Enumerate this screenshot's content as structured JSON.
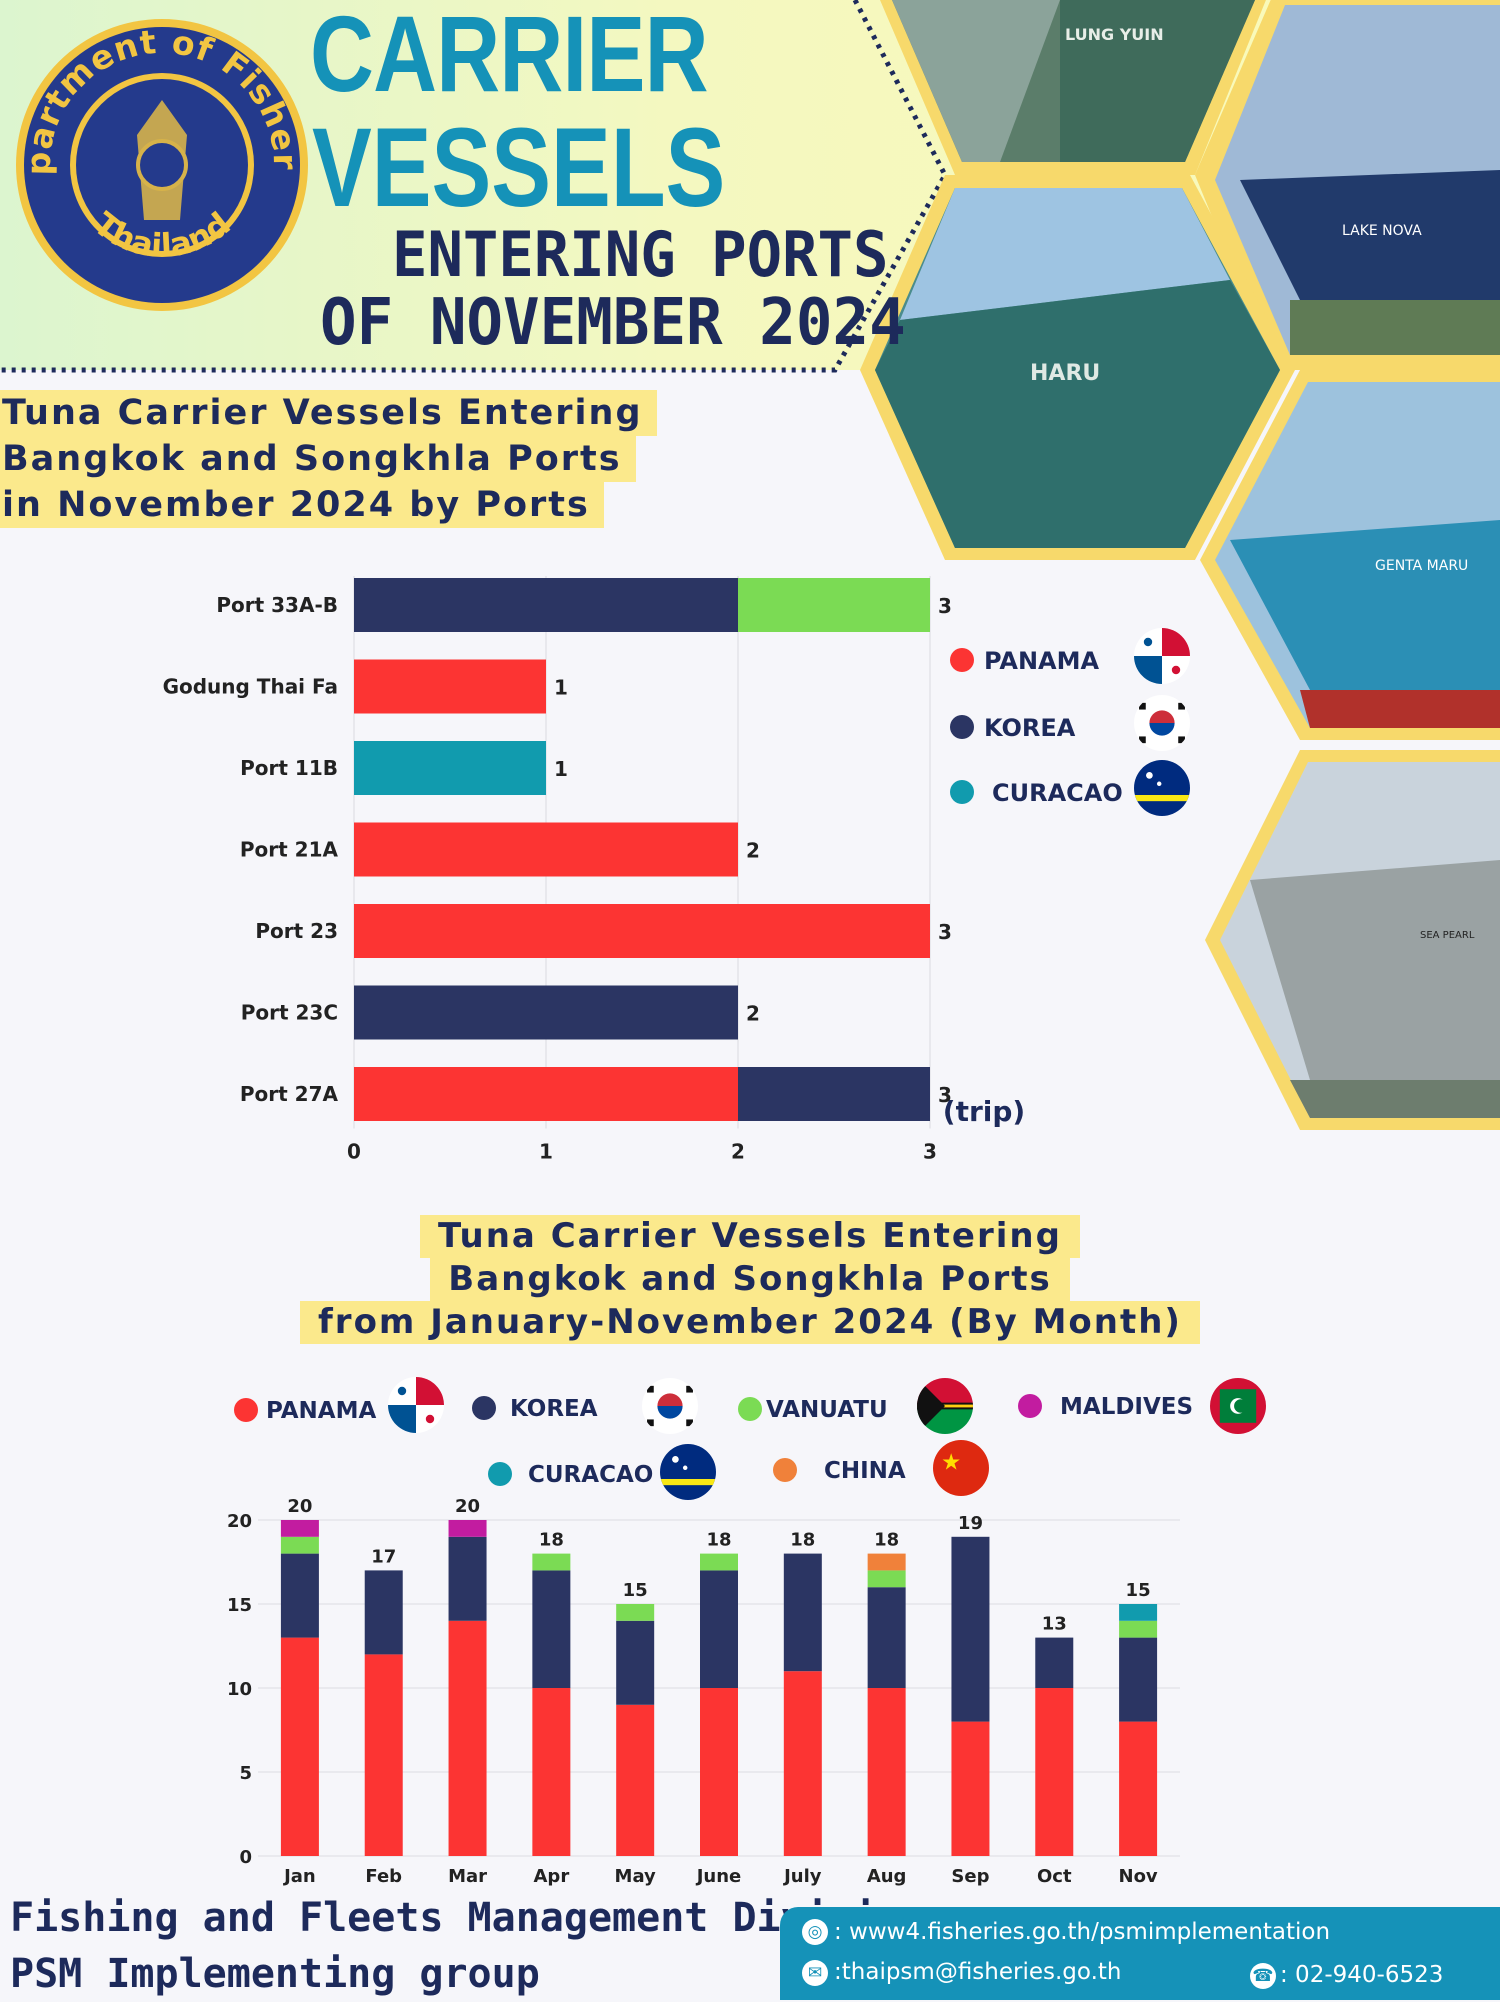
{
  "header": {
    "logo_text_top": "Department of Fisheries",
    "logo_text_bottom": "Thailand",
    "title_line1": "CARRIER",
    "title_line2": "VESSELS",
    "title_line3": "ENTERING PORTS",
    "title_line4": "OF NOVEMBER 2024"
  },
  "photos": {
    "names": [
      "LUNG YUIN",
      "LAKE NOVA",
      "HARU",
      "GENTA MARU",
      "SEA PEARL"
    ]
  },
  "section1": {
    "title_lines": [
      "Tuna Carrier Vessels Entering",
      "Bangkok and Songkhla Ports",
      "in November 2024 by Ports"
    ]
  },
  "section2": {
    "title_lines": [
      "Tuna Carrier Vessels Entering",
      "Bangkok and Songkhla Ports",
      "from January-November 2024 (By Month)"
    ]
  },
  "colors": {
    "PANAMA": "#fc3433",
    "KOREA": "#2b3563",
    "VANUATU": "#7bdb54",
    "MALDIVES": "#c21ca0",
    "CURACAO": "#119bae",
    "CHINA": "#f0813a",
    "highlight": "#fbe98c",
    "accent": "#1592b8",
    "navy": "#1d2a5b"
  },
  "chart_data": [
    {
      "type": "bar",
      "orientation": "horizontal",
      "stacked": true,
      "categories": [
        "Port 33A-B",
        "Godung Thai Fa",
        "Port 11B",
        "Port 21A",
        "Port 23",
        "Port 23C",
        "Port 27A"
      ],
      "segments": [
        [
          {
            "name": "KOREA",
            "value": 2
          },
          {
            "name": "VANUATU",
            "value": 1
          }
        ],
        [
          {
            "name": "PANAMA",
            "value": 1
          }
        ],
        [
          {
            "name": "CURACAO",
            "value": 1
          }
        ],
        [
          {
            "name": "PANAMA",
            "value": 2
          }
        ],
        [
          {
            "name": "PANAMA",
            "value": 3
          }
        ],
        [
          {
            "name": "KOREA",
            "value": 2
          }
        ],
        [
          {
            "name": "PANAMA",
            "value": 2
          },
          {
            "name": "KOREA",
            "value": 1
          }
        ]
      ],
      "totals": [
        3,
        1,
        1,
        2,
        3,
        2,
        3
      ],
      "x_ticks": [
        "0",
        "1",
        "2",
        "3"
      ],
      "xlim": [
        0,
        3
      ],
      "unit_label": "(trip)",
      "legend": [
        "PANAMA",
        "KOREA",
        "CURACAO"
      ],
      "grid": true
    },
    {
      "type": "bar",
      "stacked": true,
      "categories": [
        "Jan",
        "Feb",
        "Mar",
        "Apr",
        "May",
        "June",
        "July",
        "Aug",
        "Sep",
        "Oct",
        "Nov"
      ],
      "series": [
        {
          "name": "PANAMA",
          "values": [
            13,
            12,
            14,
            10,
            9,
            10,
            11,
            10,
            8,
            10,
            8
          ]
        },
        {
          "name": "KOREA",
          "values": [
            5,
            5,
            5,
            7,
            5,
            7,
            7,
            6,
            11,
            3,
            5
          ]
        },
        {
          "name": "VANUATU",
          "values": [
            1,
            0,
            0,
            1,
            1,
            1,
            0,
            1,
            0,
            0,
            1
          ]
        },
        {
          "name": "MALDIVES",
          "values": [
            1,
            0,
            1,
            0,
            0,
            0,
            0,
            0,
            0,
            0,
            0
          ]
        },
        {
          "name": "CURACAO",
          "values": [
            0,
            0,
            0,
            0,
            0,
            0,
            0,
            0,
            0,
            0,
            1
          ]
        },
        {
          "name": "CHINA",
          "values": [
            0,
            0,
            0,
            0,
            0,
            0,
            0,
            1,
            0,
            0,
            0
          ]
        }
      ],
      "totals": [
        20,
        17,
        20,
        18,
        15,
        18,
        18,
        18,
        19,
        13,
        15
      ],
      "y_ticks": [
        "0",
        "5",
        "10",
        "15",
        "20"
      ],
      "ylim": [
        0,
        20
      ],
      "legend": [
        "PANAMA",
        "KOREA",
        "VANUATU",
        "MALDIVES",
        "CURACAO",
        "CHINA"
      ],
      "grid": true
    }
  ],
  "footer": {
    "division": "Fishing and Fleets Management Division",
    "group": "PSM Implementing group",
    "website": ": www4.fisheries.go.th/psmimplementation",
    "email": ":thaipsm@fisheries.go.th",
    "phone": ": 02-940-6523",
    "icons": [
      "globe-icon",
      "mail-icon",
      "phone-icon"
    ]
  }
}
